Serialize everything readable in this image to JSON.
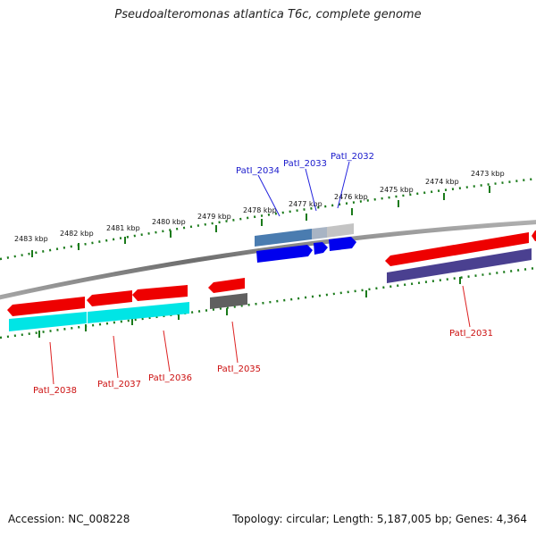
{
  "title": "Pseudoalteromonas atlantica T6c, complete genome",
  "footer": {
    "accession": "Accession: NC_008228",
    "summary": "Topology: circular; Length: 5,187,005 bp; Genes: 4,364"
  },
  "kbp_labels": [
    "2483 kbp",
    "2482 kbp",
    "2481 kbp",
    "2480 kbp",
    "2479 kbp",
    "2478 kbp",
    "2477 kbp",
    "2476 kbp",
    "2475 kbp",
    "2474 kbp",
    "2473 kbp"
  ],
  "genes_top": [
    "PatI_2034",
    "PatI_2033",
    "PatI_2032"
  ],
  "genes_bottom": [
    "PatI_2038",
    "PatI_2037",
    "PatI_2036",
    "PatI_2035",
    "PatI_2031"
  ],
  "colors": {
    "forward_gene": "#0000ee",
    "reverse_gene": "#ee0000",
    "cyan_feature": "#00e5e5",
    "purple_feature": "#4a4090",
    "steelblue_feature": "#4a7cb0",
    "gray_feature": "#b8b8b8",
    "darkgray_feature": "#606060",
    "tick": "#1a7a1a",
    "backbone": "#808080",
    "top_label": "#1a1acc",
    "bottom_label": "#cc1010"
  }
}
